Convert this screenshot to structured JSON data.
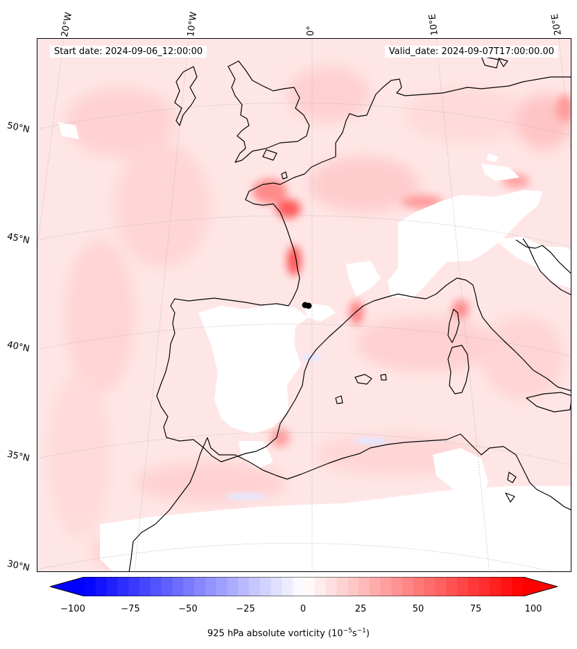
{
  "header": {
    "start_date": "Start date: 2024-09-06_12:00:00",
    "valid_date": "Valid_date: 2024-09-07T17:00:00.00"
  },
  "map": {
    "lon_labels": [
      "20°W",
      "10°W",
      "0°",
      "10°E",
      "20°E"
    ],
    "lat_labels": [
      "50°N",
      "45°N",
      "40°N",
      "35°N",
      "30°N"
    ],
    "marker": "black-dot-marker",
    "colors": {
      "positive": "#ff0000",
      "negative": "#0000ff",
      "coast": "#000000"
    }
  },
  "colorbar": {
    "ticks": [
      "−100",
      "−75",
      "−50",
      "−25",
      "0",
      "25",
      "50",
      "75",
      "100"
    ],
    "title_main": "925 hPa absolute vorticity (10",
    "title_exp1": "−5",
    "title_mid": "s",
    "title_exp2": "−1",
    "title_end": ")",
    "range": [
      -100,
      100
    ],
    "colormap": "bwr"
  }
}
